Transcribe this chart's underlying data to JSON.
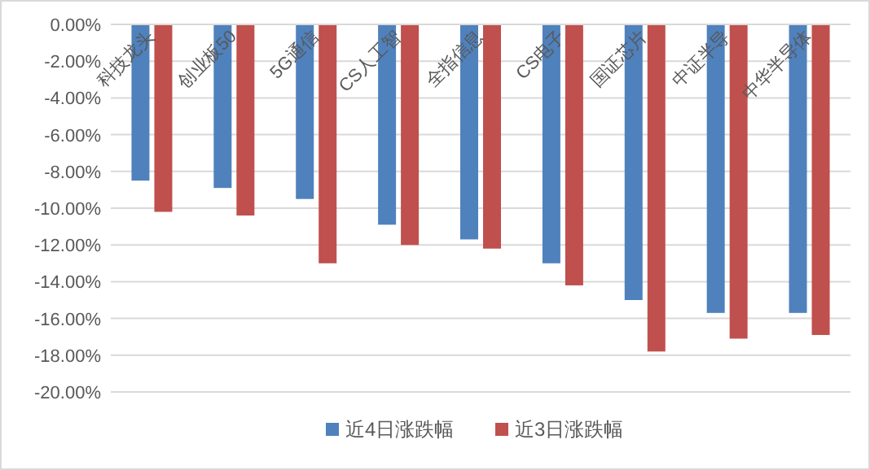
{
  "chart_data": {
    "type": "bar",
    "categories": [
      "科技龙头",
      "创业板50",
      "5G通信",
      "CS人工智",
      "全指信息",
      "CS电子",
      "国证芯片",
      "中证半导",
      "中华半导体"
    ],
    "series": [
      {
        "name": "近4日涨跌幅",
        "color": "#4f81bd",
        "values": [
          -8.5,
          -8.9,
          -9.5,
          -10.9,
          -11.7,
          -13.0,
          -15.0,
          -15.7,
          -15.7
        ]
      },
      {
        "name": "近3日涨跌幅",
        "color": "#c0504d",
        "values": [
          -10.2,
          -10.4,
          -13.0,
          -12.0,
          -12.2,
          -14.2,
          -17.8,
          -17.1,
          -16.9
        ]
      }
    ],
    "ylim": [
      -20,
      0
    ],
    "yticks": [
      {
        "value": 0,
        "label": "0.00%"
      },
      {
        "value": -2,
        "label": "-2.00%"
      },
      {
        "value": -4,
        "label": "-4.00%"
      },
      {
        "value": -6,
        "label": "-6.00%"
      },
      {
        "value": -8,
        "label": "-8.00%"
      },
      {
        "value": -10,
        "label": "-10.00%"
      },
      {
        "value": -12,
        "label": "-12.00%"
      },
      {
        "value": -14,
        "label": "-14.00%"
      },
      {
        "value": -16,
        "label": "-16.00%"
      },
      {
        "value": -18,
        "label": "-18.00%"
      },
      {
        "value": -20,
        "label": "-20.00%"
      }
    ],
    "grid": "y",
    "legend": "bottom"
  }
}
